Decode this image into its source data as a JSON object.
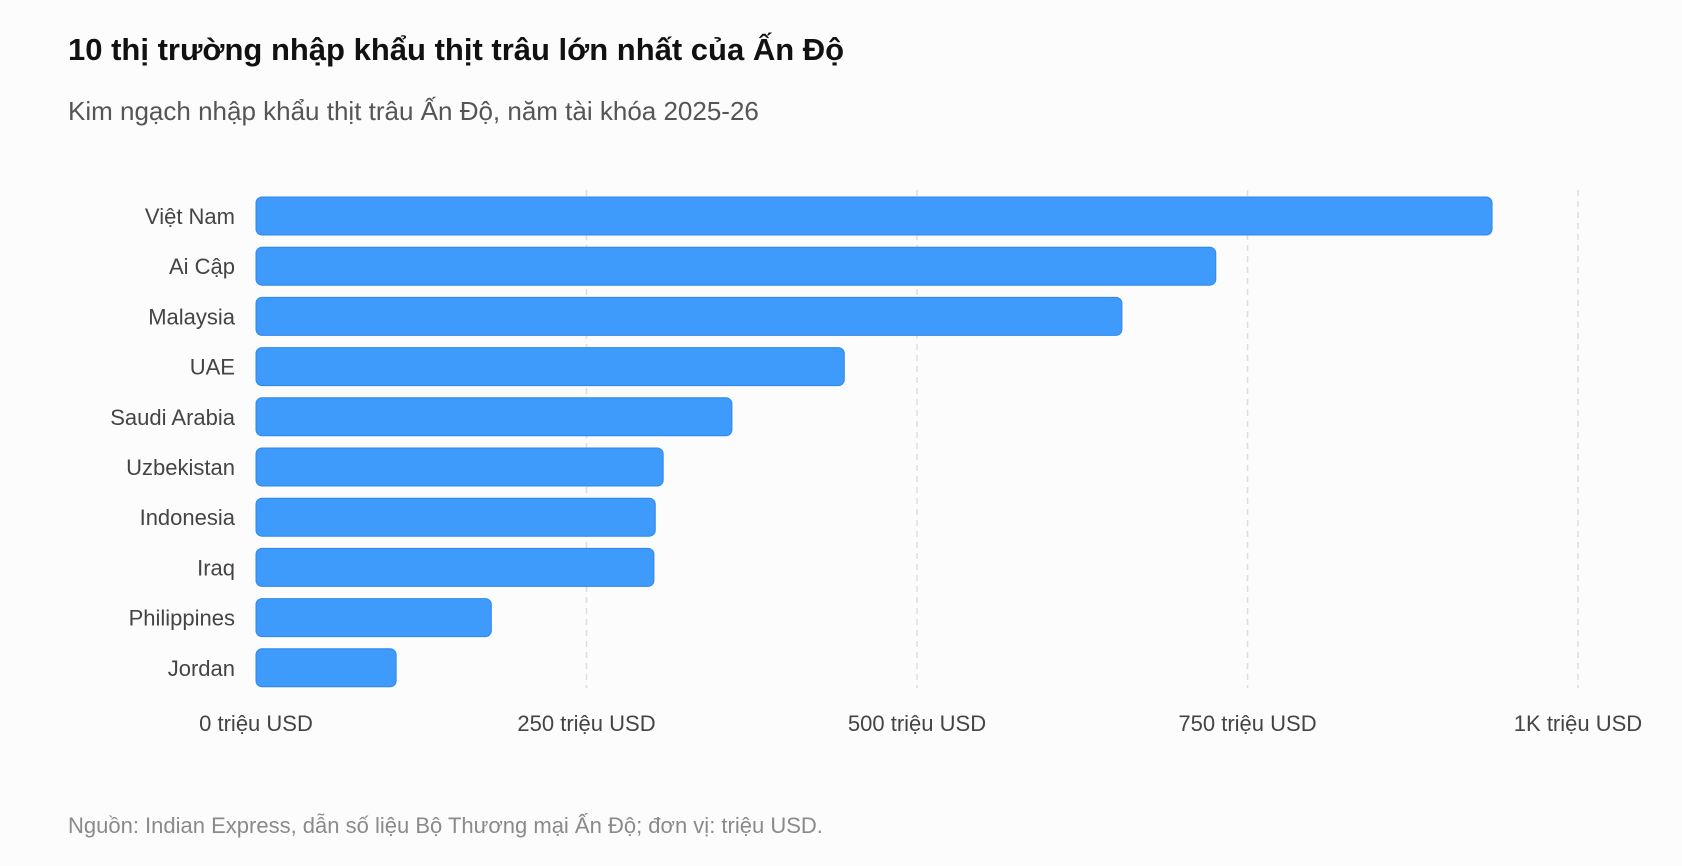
{
  "title": "10 thị trường nhập khẩu thịt trâu lớn nhất của Ấn Độ",
  "subtitle": "Kim ngạch nhập khẩu thịt trâu Ấn Độ, năm tài khóa 2025-26",
  "source": "Nguồn: Indian Express, dẫn số liệu Bộ Thương mại Ấn Độ; đơn vị: triệu USD.",
  "chart_data": {
    "type": "bar",
    "orientation": "horizontal",
    "categories": [
      "Việt Nam",
      "Ai Cập",
      "Malaysia",
      "UAE",
      "Saudi Arabia",
      "Uzbekistan",
      "Indonesia",
      "Iraq",
      "Philippines",
      "Jordan"
    ],
    "values": [
      935,
      726,
      655,
      445,
      360,
      308,
      302,
      301,
      178,
      106
    ],
    "xlim": [
      0,
      1000
    ],
    "x_ticks": [
      0,
      250,
      500,
      750,
      1000
    ],
    "x_tick_labels": [
      "0 triệu USD",
      "250 triệu USD",
      "500 triệu USD",
      "750 triệu USD",
      "1K triệu USD"
    ],
    "grid": "vertical dashed",
    "bar_color": "#3f9bfb",
    "bar_stroke": "#2f86ea",
    "grid_color": "#dddddd",
    "xlabel": "",
    "ylabel": ""
  }
}
